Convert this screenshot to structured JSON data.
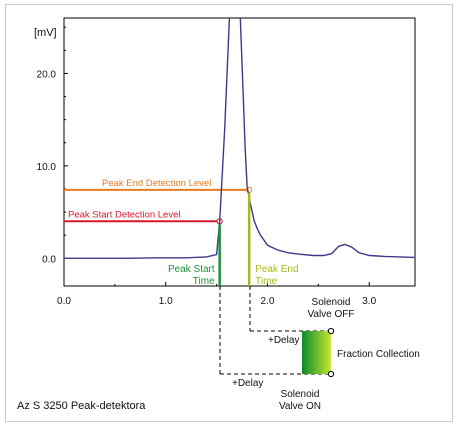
{
  "chart_data": {
    "type": "line",
    "ylabel": "[mV]",
    "xlim": [
      0.0,
      3.45
    ],
    "ylim": [
      -3.0,
      26.0
    ],
    "x_ticks": [
      "0.0",
      "1.0",
      "2.0",
      "3.0"
    ],
    "x_tick_values": [
      0,
      1,
      2,
      3
    ],
    "y_ticks": [
      "0.0",
      "10.0",
      "20.0"
    ],
    "y_tick_values": [
      0,
      10,
      20
    ],
    "series": [
      {
        "x": [
          0.0,
          0.3,
          0.6,
          0.9,
          1.2,
          1.4,
          1.5,
          1.53,
          1.58,
          1.63,
          1.66,
          1.69,
          1.72,
          1.74,
          1.76,
          1.78,
          1.8,
          1.83,
          1.87,
          1.9,
          1.93,
          1.97,
          2.0,
          2.1,
          2.2,
          2.3,
          2.45,
          2.55,
          2.63,
          2.7,
          2.76,
          2.83,
          2.9,
          3.0,
          3.15,
          3.3,
          3.45
        ],
        "y": [
          0.0,
          0.0,
          0.0,
          0.05,
          0.05,
          0.15,
          0.4,
          4.0,
          14.0,
          27.0,
          33.0,
          33.0,
          30.0,
          24.0,
          18.0,
          12.0,
          7.8,
          6.0,
          4.0,
          3.2,
          2.5,
          1.9,
          1.4,
          0.9,
          0.6,
          0.45,
          0.3,
          0.3,
          0.5,
          1.3,
          1.5,
          1.2,
          0.6,
          0.3,
          0.2,
          0.15,
          0.1
        ]
      }
    ],
    "levels": [
      {
        "label": "Peak End Detection Level",
        "y": 7.4,
        "x_end": 1.82,
        "color": "#e87c1e"
      },
      {
        "label": "Peak Start Detection Level",
        "y": 4.0,
        "x_end": 1.53,
        "color": "#d6182c"
      }
    ],
    "markers": [
      {
        "label_lines": [
          "Peak Start",
          "Time"
        ],
        "x": 1.53,
        "color": "#1f8f3a"
      },
      {
        "label_lines": [
          "Peak End",
          "Time"
        ],
        "x": 1.82,
        "color": "#a6b81c"
      }
    ]
  },
  "timing": {
    "valve_on": [
      "Solenoid",
      "Valve ON"
    ],
    "valve_off": [
      "Solenoid",
      "Valve OFF"
    ],
    "delay_on": "+Delay",
    "delay_off": "+Delay",
    "fraction_collection": "Fraction Collection"
  },
  "caption": "Az S 3250 Peak-detektora",
  "colors": {
    "trace": "#3d3a8c",
    "axis": "#000000",
    "gradient_dark": "#0c8a2c",
    "gradient_light": "#c7e832"
  }
}
